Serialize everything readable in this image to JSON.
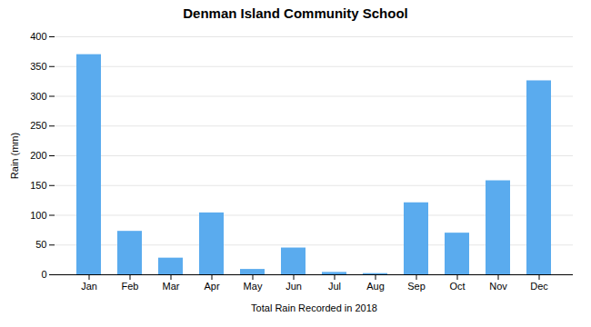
{
  "chart_data": {
    "type": "bar",
    "title": "Denman Island Community School",
    "xlabel": "Total Rain Recorded in 2018",
    "ylabel": "Rain (mm)",
    "categories": [
      "Jan",
      "Feb",
      "Mar",
      "Apr",
      "May",
      "Jun",
      "Jul",
      "Aug",
      "Sep",
      "Oct",
      "Nov",
      "Dec"
    ],
    "values": [
      370,
      73,
      28,
      104,
      9,
      45,
      4,
      2,
      121,
      70,
      158,
      326
    ],
    "color": "#5aabee",
    "ylim": [
      0,
      400
    ],
    "yticks": [
      0,
      50,
      100,
      150,
      200,
      250,
      300,
      350,
      400
    ],
    "grid": true
  }
}
